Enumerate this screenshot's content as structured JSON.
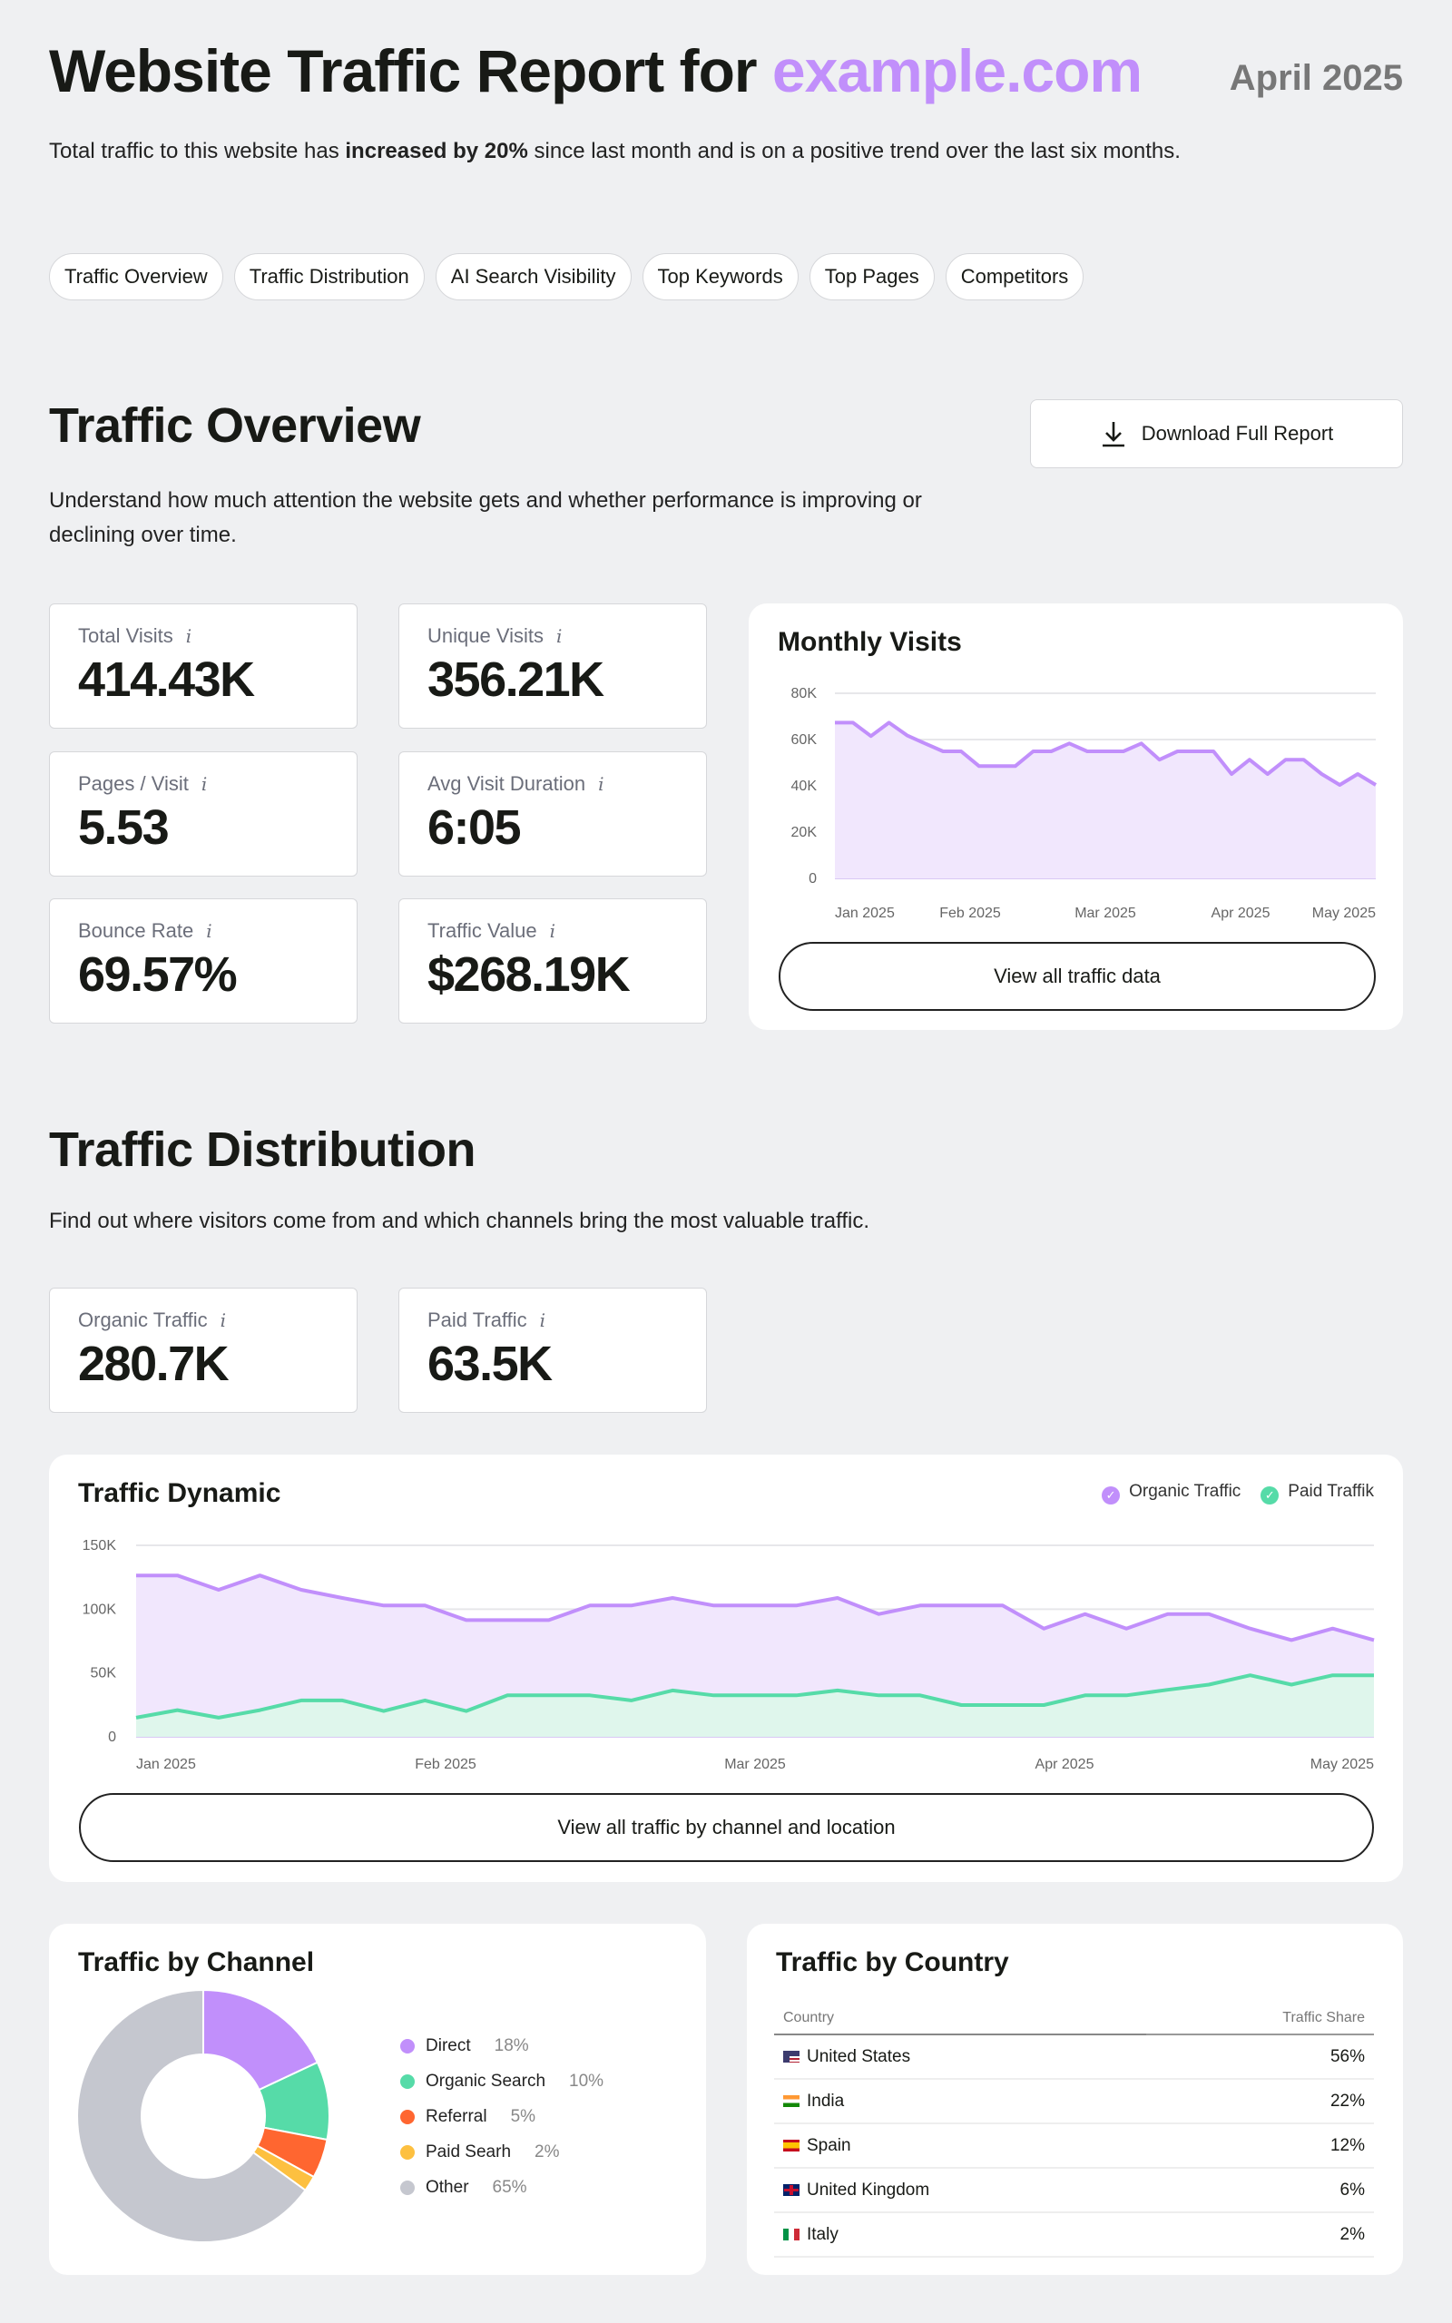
{
  "header": {
    "title_prefix": "Website Traffic Report for ",
    "domain": "example.com",
    "date": "April 2025",
    "intro_before": "Total traffic to this website has ",
    "intro_bold": "increased by 20%",
    "intro_after": " since last month and is on a positive trend over the last six months."
  },
  "nav": [
    "Traffic Overview",
    "Traffic Distribution",
    "AI Search Visibility",
    "Top Keywords",
    "Top Pages",
    "Competitors"
  ],
  "overview": {
    "title": "Traffic Overview",
    "download_label": "Download Full Report",
    "description": "Understand how much attention the website gets and whether performance is improving or declining over time.",
    "kpis": [
      {
        "label": "Total Visits",
        "value": "414.43K"
      },
      {
        "label": "Unique Visits",
        "value": "356.21K"
      },
      {
        "label": "Pages / Visit",
        "value": "5.53"
      },
      {
        "label": "Avg Visit Duration",
        "value": "6:05"
      },
      {
        "label": "Bounce Rate",
        "value": "69.57%"
      },
      {
        "label": "Traffic Value",
        "value": "$268.19K"
      }
    ],
    "info_icon": "i",
    "view_all_label": "View all traffic data"
  },
  "distribution": {
    "title": "Traffic Distribution",
    "description": "Find out where visitors come from and which channels bring the most valuable traffic.",
    "kpis": [
      {
        "label": "Organic Traffic",
        "value": "280.7K"
      },
      {
        "label": "Paid Traffic",
        "value": "63.5K"
      }
    ],
    "view_all_label": "View all traffic by channel and location"
  },
  "colors": {
    "purple": "#c18ffb",
    "purple_fill": "#f1e7fd",
    "green": "#56dba8",
    "green_fill": "#dff6ec",
    "orange": "#ff6630",
    "yellow": "#fdc040",
    "gray": "#c5c7cf",
    "bg": "#eff0f2"
  },
  "chart_data": [
    {
      "type": "area",
      "title": "Monthly Visits",
      "x_ticks": [
        "Jan 2025",
        "Feb 2025",
        "Mar 2025",
        "Apr 2025",
        "May 2025"
      ],
      "y_ticks": [
        "80K",
        "60K",
        "40K",
        "20K",
        "0"
      ],
      "ylim": [
        0,
        80000
      ],
      "grid": true,
      "series": [
        {
          "values": [
            67300,
            67300,
            61500,
            67300,
            61800,
            58300,
            54900,
            54900,
            48500,
            48500,
            48500,
            54900,
            54900,
            58300,
            54900,
            54900,
            54900,
            58300,
            51300,
            54900,
            54900,
            54900,
            45100,
            51300,
            45100,
            51300,
            51300,
            45100,
            40400,
            45100,
            40400
          ]
        }
      ]
    },
    {
      "type": "area",
      "title": "Traffic Dynamic",
      "x_ticks": [
        "Jan 2025",
        "Feb 2025",
        "Mar 2025",
        "Apr 2025",
        "May 2025"
      ],
      "y_ticks": [
        "150K",
        "100K",
        "50K",
        "0"
      ],
      "ylim": [
        0,
        150000
      ],
      "grid": true,
      "legend": "top-right",
      "series": [
        {
          "name": "Organic Traffic",
          "values": [
            126400,
            126400,
            115200,
            126400,
            115200,
            108800,
            102900,
            102900,
            91400,
            91400,
            91400,
            102900,
            102900,
            108800,
            102900,
            102900,
            102900,
            108800,
            96200,
            102900,
            102900,
            102900,
            84800,
            96200,
            84800,
            96200,
            96200,
            84800,
            75800,
            84800,
            75800
          ]
        },
        {
          "name": "Paid Traffik",
          "values": [
            15000,
            20900,
            15000,
            20900,
            28500,
            28500,
            20200,
            28500,
            20200,
            32500,
            32500,
            32500,
            28500,
            36300,
            32500,
            32500,
            32500,
            36300,
            32500,
            32500,
            24900,
            24900,
            24900,
            32500,
            32500,
            36800,
            40900,
            48200,
            40900,
            48200,
            48200
          ]
        }
      ]
    },
    {
      "type": "pie",
      "title": "Traffic by Channel",
      "categories": [
        "Direct",
        "Organic Search",
        "Referral",
        "Paid Searh",
        "Other"
      ],
      "values": [
        18,
        10,
        5,
        2,
        65
      ],
      "labels": [
        "18%",
        "10%",
        "5%",
        "2%",
        "65%"
      ]
    },
    {
      "type": "table",
      "title": "Traffic by Country",
      "columns": [
        "Country",
        "Traffic Share"
      ],
      "rows": [
        [
          "United States",
          "56%"
        ],
        [
          "India",
          "22%"
        ],
        [
          "Spain",
          "12%"
        ],
        [
          "United Kingdom",
          "6%"
        ],
        [
          "Italy",
          "2%"
        ]
      ]
    }
  ]
}
